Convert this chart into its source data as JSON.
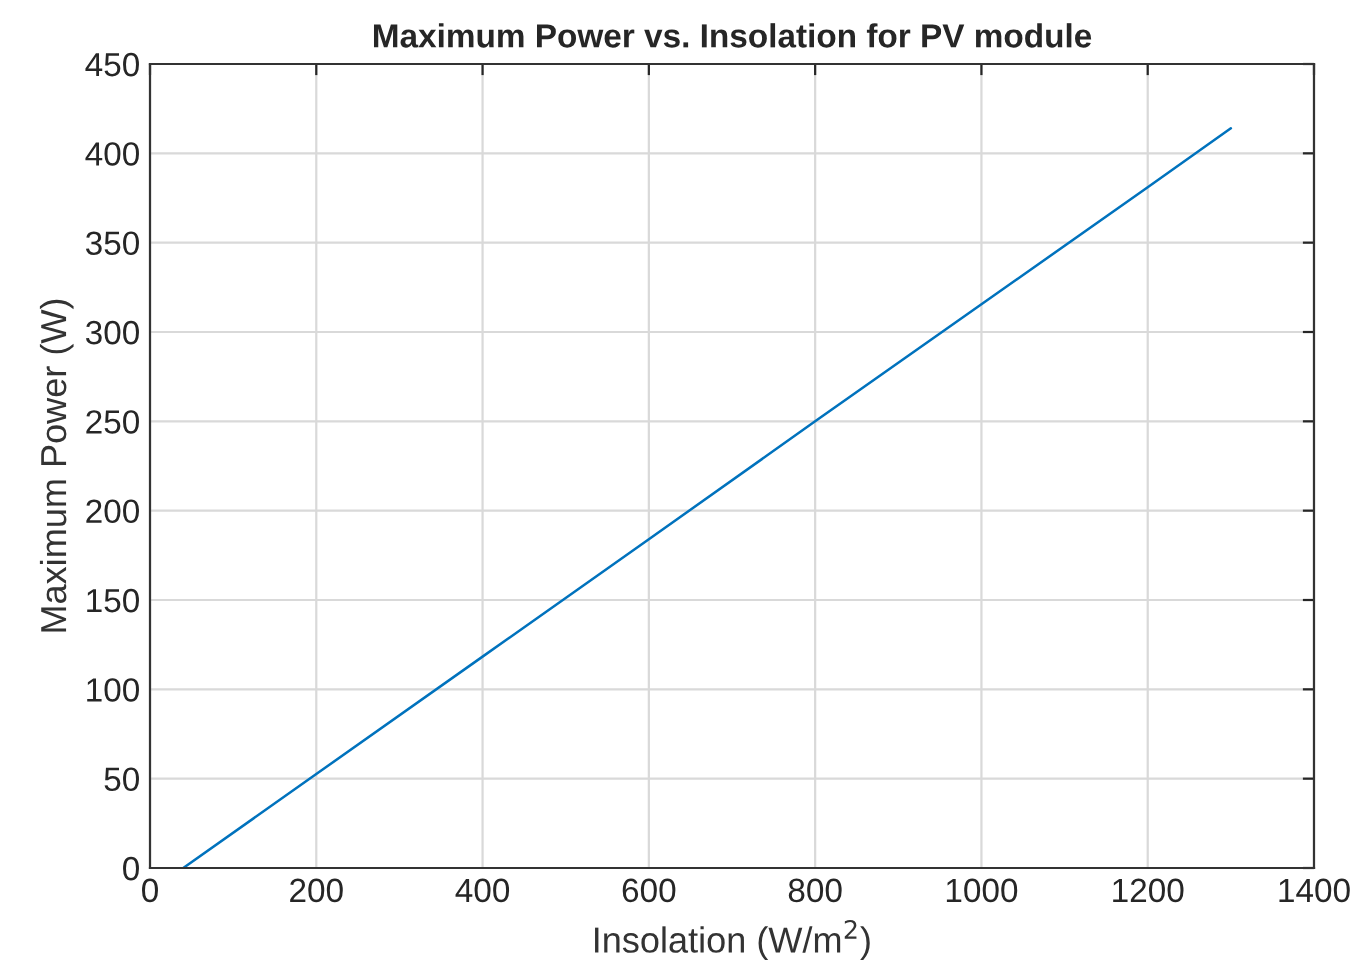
{
  "chart_data": {
    "type": "line",
    "title": "Maximum Power vs. Insolation for PV module",
    "xlabel": "Insolation (W/m$^{2}$)",
    "ylabel": "Maximum Power (W)",
    "x": [
      40,
      200,
      400,
      600,
      800,
      1000,
      1200,
      1300
    ],
    "series": [
      {
        "color": "#0072bd",
        "values": [
          0,
          52.6,
          118.3,
          184,
          250,
          315.5,
          381,
          414
        ]
      }
    ],
    "xlim": [
      0,
      1400
    ],
    "ylim": [
      0,
      450
    ],
    "xticks": [
      0,
      200,
      400,
      600,
      800,
      1000,
      1200,
      1400
    ],
    "yticks": [
      0,
      50,
      100,
      150,
      200,
      250,
      300,
      350,
      400,
      450
    ],
    "grid": true
  }
}
